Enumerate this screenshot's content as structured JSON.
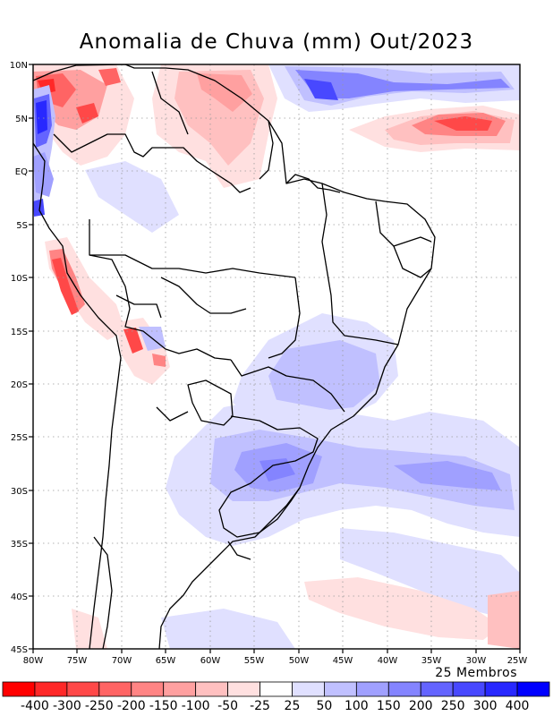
{
  "title": "Anomalia de Chuva (mm) Out/2023",
  "members_label": "25 Membros",
  "lat_ticks": [
    "10N",
    "5N",
    "EQ",
    "5S",
    "10S",
    "15S",
    "20S",
    "25S",
    "30S",
    "35S",
    "40S",
    "45S"
  ],
  "lon_ticks": [
    "80W",
    "75W",
    "70W",
    "65W",
    "60W",
    "55W",
    "50W",
    "45W",
    "40W",
    "35W",
    "30W",
    "25W"
  ],
  "map": {
    "lon_range": [
      -80,
      -25
    ],
    "lat_range": [
      -45,
      10
    ],
    "variable": "Anomalia de precipitação",
    "units": "mm"
  },
  "colorbar": {
    "labels": [
      "-400",
      "-300",
      "-250",
      "-200",
      "-150",
      "-100",
      "-50",
      "-25",
      "25",
      "50",
      "100",
      "150",
      "200",
      "250",
      "300",
      "400"
    ],
    "colors": [
      "#ff0000",
      "#ff2828",
      "#ff4848",
      "#ff6464",
      "#ff8484",
      "#ffa0a0",
      "#ffc0c0",
      "#ffe0e0",
      "#ffffff",
      "#e0e0ff",
      "#c0c0ff",
      "#a0a0ff",
      "#8484ff",
      "#6464ff",
      "#4848ff",
      "#2828ff",
      "#0000ff"
    ]
  }
}
